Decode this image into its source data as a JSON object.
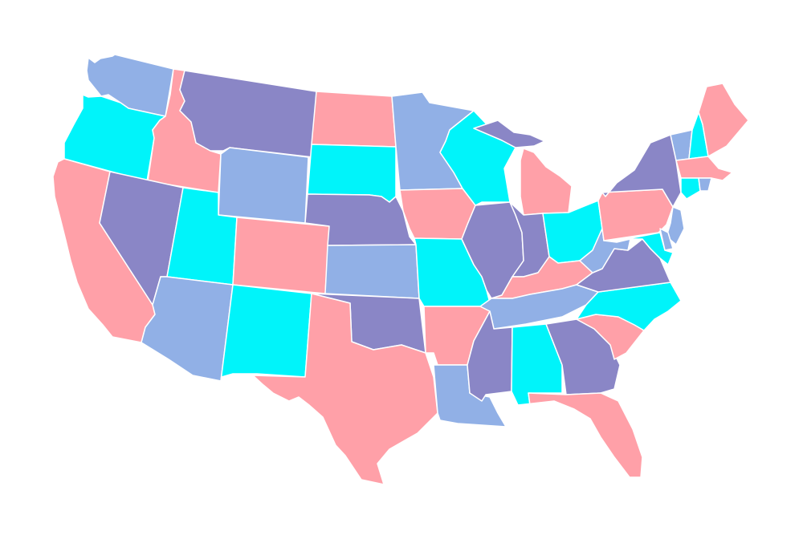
{
  "map": {
    "palette": {
      "pink": "#ffa0a8",
      "cyan": "#00f4fa",
      "blue": "#91b0e6",
      "purple": "#8a86c6",
      "background": "#ffffff",
      "border": "#ffffff"
    },
    "states": [
      {
        "id": "WA",
        "color": "blue"
      },
      {
        "id": "OR",
        "color": "cyan"
      },
      {
        "id": "CA",
        "color": "pink"
      },
      {
        "id": "ID",
        "color": "pink"
      },
      {
        "id": "NV",
        "color": "purple"
      },
      {
        "id": "MT",
        "color": "purple"
      },
      {
        "id": "WY",
        "color": "blue"
      },
      {
        "id": "UT",
        "color": "cyan"
      },
      {
        "id": "AZ",
        "color": "blue"
      },
      {
        "id": "CO",
        "color": "pink"
      },
      {
        "id": "NM",
        "color": "cyan"
      },
      {
        "id": "ND",
        "color": "pink"
      },
      {
        "id": "SD",
        "color": "cyan"
      },
      {
        "id": "NE",
        "color": "purple"
      },
      {
        "id": "KS",
        "color": "blue"
      },
      {
        "id": "OK",
        "color": "purple"
      },
      {
        "id": "TX",
        "color": "pink"
      },
      {
        "id": "MN",
        "color": "blue"
      },
      {
        "id": "IA",
        "color": "pink"
      },
      {
        "id": "MO",
        "color": "cyan"
      },
      {
        "id": "AR",
        "color": "pink"
      },
      {
        "id": "LA",
        "color": "blue"
      },
      {
        "id": "WI",
        "color": "cyan"
      },
      {
        "id": "IL",
        "color": "purple"
      },
      {
        "id": "MI-UP",
        "color": "purple"
      },
      {
        "id": "MI",
        "color": "pink"
      },
      {
        "id": "IN",
        "color": "purple"
      },
      {
        "id": "OH",
        "color": "cyan"
      },
      {
        "id": "KY",
        "color": "pink"
      },
      {
        "id": "TN",
        "color": "blue"
      },
      {
        "id": "MS",
        "color": "purple"
      },
      {
        "id": "AL",
        "color": "cyan"
      },
      {
        "id": "GA",
        "color": "purple"
      },
      {
        "id": "FL",
        "color": "pink"
      },
      {
        "id": "SC",
        "color": "pink"
      },
      {
        "id": "NC",
        "color": "cyan"
      },
      {
        "id": "VA",
        "color": "purple"
      },
      {
        "id": "WV",
        "color": "blue"
      },
      {
        "id": "PA",
        "color": "pink"
      },
      {
        "id": "NY",
        "color": "purple"
      },
      {
        "id": "VT",
        "color": "blue"
      },
      {
        "id": "NH",
        "color": "cyan"
      },
      {
        "id": "ME",
        "color": "pink"
      },
      {
        "id": "MA",
        "color": "pink"
      },
      {
        "id": "CT",
        "color": "cyan"
      },
      {
        "id": "RI",
        "color": "blue"
      },
      {
        "id": "NJ",
        "color": "blue"
      },
      {
        "id": "DE",
        "color": "blue"
      },
      {
        "id": "MD",
        "color": "cyan"
      }
    ]
  }
}
